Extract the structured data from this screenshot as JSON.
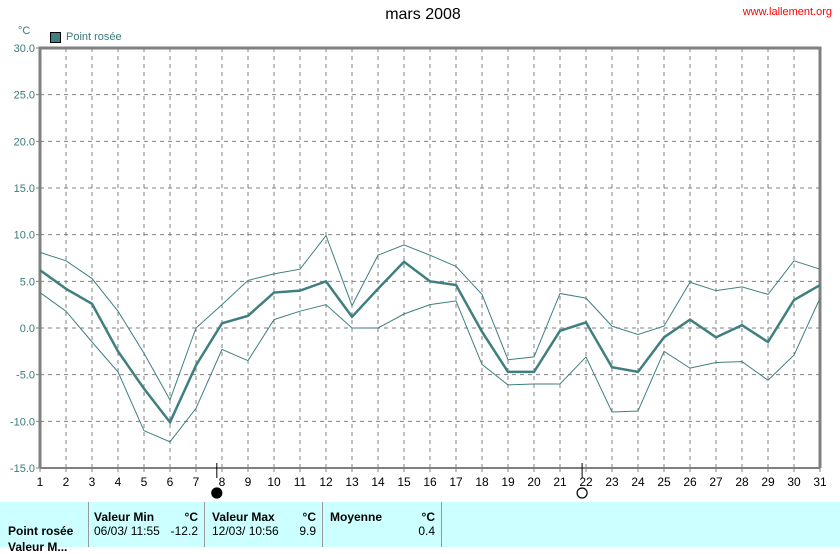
{
  "chart_data": {
    "type": "line",
    "title": "mars 2008",
    "ylabel": "°C",
    "ylim": [
      -15,
      30
    ],
    "yticks": [
      "30.0",
      "25.0",
      "20.0",
      "15.0",
      "10.0",
      "5.0",
      "0.0",
      "-5.0",
      "-10.0",
      "-15.0"
    ],
    "x": [
      1,
      2,
      3,
      4,
      5,
      6,
      7,
      8,
      9,
      10,
      11,
      12,
      13,
      14,
      15,
      16,
      17,
      18,
      19,
      20,
      21,
      22,
      23,
      24,
      25,
      26,
      27,
      28,
      29,
      30,
      31
    ],
    "grid": true,
    "legend_position": "top-left",
    "series": [
      {
        "name": "Point rosée",
        "role": "mean",
        "color": "#3f7f7f",
        "values": [
          6.2,
          4.2,
          2.6,
          -2.5,
          -6.5,
          -10.1,
          -4.0,
          0.5,
          1.3,
          3.8,
          4.0,
          5.0,
          1.2,
          4.2,
          7.1,
          5.0,
          4.6,
          -0.4,
          -4.7,
          -4.7,
          -0.3,
          0.6,
          -4.2,
          -4.7,
          -1.0,
          0.9,
          -1.0,
          0.3,
          -1.5,
          3.0,
          4.6
        ]
      },
      {
        "role": "max",
        "color": "#3f7f7f",
        "values": [
          8.1,
          7.2,
          5.3,
          1.8,
          -2.7,
          -7.7,
          0.0,
          2.5,
          5.1,
          5.8,
          6.3,
          9.9,
          2.4,
          7.8,
          8.9,
          7.8,
          6.6,
          3.6,
          -3.4,
          -3.1,
          3.7,
          3.2,
          0.2,
          -0.7,
          0.2,
          4.9,
          4.0,
          4.4,
          3.6,
          7.2,
          6.3
        ]
      },
      {
        "role": "min",
        "color": "#3f7f7f",
        "values": [
          3.8,
          1.8,
          -1.5,
          -4.7,
          -11.0,
          -12.2,
          -8.6,
          -2.3,
          -3.5,
          0.9,
          1.8,
          2.5,
          0.0,
          0.0,
          1.5,
          2.5,
          2.9,
          -3.9,
          -6.1,
          -6.0,
          -6.0,
          -3.1,
          -9.0,
          -8.9,
          -2.5,
          -4.3,
          -3.7,
          -3.6,
          -5.6,
          -2.9,
          3.2
        ]
      }
    ],
    "markers": [
      {
        "x": 7.8,
        "symbol": "filled-circle"
      },
      {
        "x": 21.85,
        "symbol": "open-circle"
      }
    ]
  },
  "header": {
    "site": "www.lallement.org"
  },
  "legend": {
    "label": "Point rosée"
  },
  "summary": {
    "row_label": "Point rosée",
    "row_label2": "Valeur M...",
    "min_header": "Valeur Min",
    "min_unit": "°C",
    "min_date": "06/03/  11:55",
    "min_value": "-12.2",
    "max_header": "Valeur Max",
    "max_unit": "°C",
    "max_date": "12/03/  10:56",
    "max_value": "9.9",
    "avg_header": "Moyenne",
    "avg_unit": "°C",
    "avg_value": "0.4"
  }
}
